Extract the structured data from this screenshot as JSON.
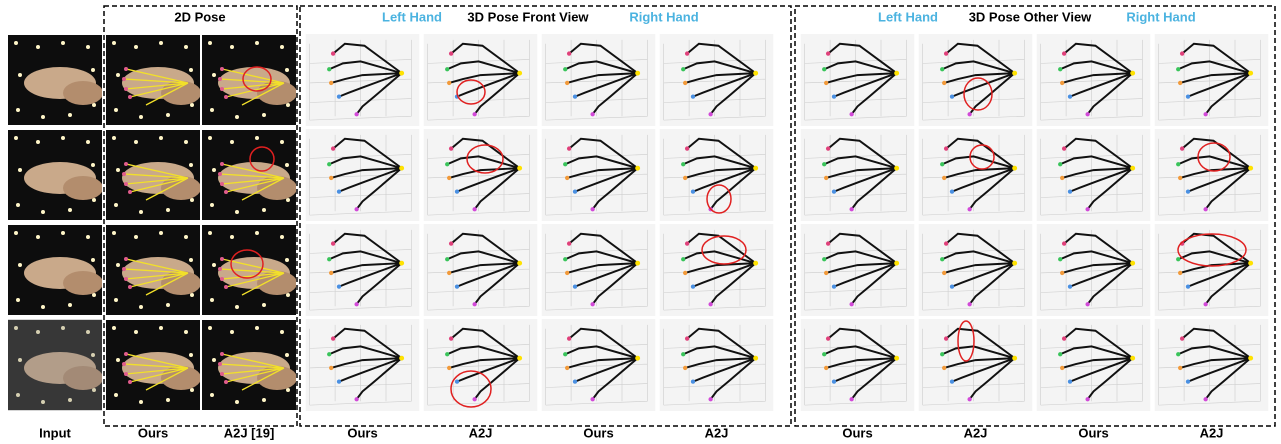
{
  "panels": {
    "pose_2d": {
      "title": "2D Pose"
    },
    "front_view": {
      "left_label": "Left Hand",
      "title": "3D Pose Front View",
      "right_label": "Right Hand"
    },
    "other_view": {
      "left_label": "Left Hand",
      "title": "3D Pose Other View",
      "right_label": "Right Hand"
    }
  },
  "columns": [
    "Input",
    "Ours",
    "A2J [19]",
    "Ours",
    "A2J",
    "Ours",
    "A2J",
    "Ours",
    "A2J",
    "Ours",
    "A2J"
  ]
}
